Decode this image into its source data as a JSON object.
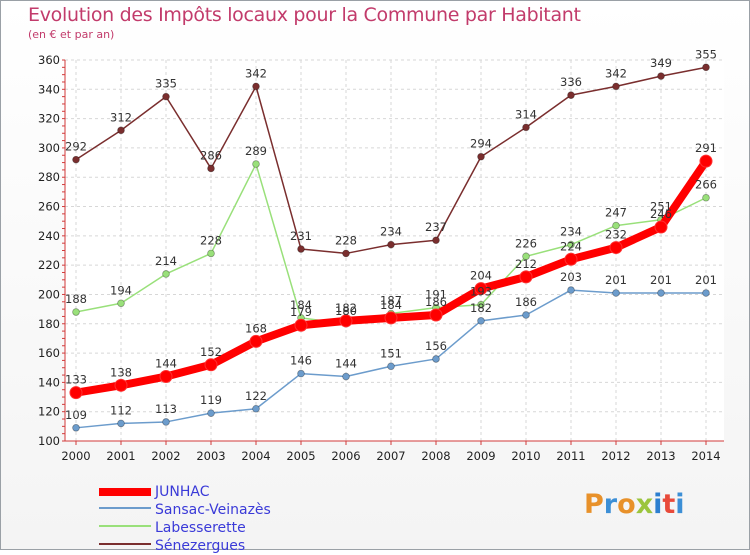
{
  "chart_data": {
    "type": "line",
    "title": "Evolution des Impôts locaux pour la Commune par Habitant",
    "subtitle": "(en € et par an)",
    "xlabel": "",
    "ylabel": "",
    "x": [
      "2000",
      "2001",
      "2002",
      "2003",
      "2004",
      "2005",
      "2006",
      "2007",
      "2008",
      "2009",
      "2010",
      "2011",
      "2012",
      "2013",
      "2014"
    ],
    "ylim": [
      100,
      360
    ],
    "yticks": [
      100,
      120,
      140,
      160,
      180,
      200,
      220,
      240,
      260,
      280,
      300,
      320,
      340,
      360
    ],
    "legend_position": "bottom-left",
    "series": [
      {
        "name": "JUNHAC",
        "color": "#ff0000",
        "values": [
          133,
          138,
          144,
          152,
          168,
          179,
          182,
          184,
          186,
          204,
          212,
          224,
          232,
          246,
          291
        ],
        "labels": [
          "133",
          "138",
          "144",
          "152",
          "168",
          "179",
          "182",
          "184",
          "186",
          "204",
          "212",
          "224",
          "232",
          "246",
          "291"
        ]
      },
      {
        "name": "Sansac-Veinazès",
        "color": "#6c9ccc",
        "values": [
          109,
          112,
          113,
          119,
          122,
          146,
          144,
          151,
          156,
          182,
          186,
          203,
          201,
          201,
          201
        ],
        "labels": [
          "109",
          "112",
          "113",
          "119",
          "122",
          "146",
          "144",
          "151",
          "156",
          "182",
          "186",
          "203",
          "201",
          "201",
          "201"
        ]
      },
      {
        "name": "Labesserette",
        "color": "#99e07a",
        "values": [
          188,
          194,
          214,
          228,
          289,
          184,
          180,
          187,
          191,
          193,
          226,
          234,
          247,
          251,
          266
        ],
        "labels": [
          "188",
          "194",
          "214",
          "228",
          "289",
          "184",
          "180",
          "187",
          "191",
          "193",
          "226",
          "234",
          "247",
          "251",
          "266"
        ]
      },
      {
        "name": "Sénezergues",
        "color": "#7a2e2e",
        "values": [
          292,
          312,
          335,
          286,
          342,
          231,
          228,
          234,
          237,
          294,
          314,
          336,
          342,
          349,
          355
        ],
        "labels": [
          "292",
          "312",
          "335",
          "286",
          "342",
          "231",
          "228",
          "234",
          "237",
          "294",
          "314",
          "336",
          "342",
          "349",
          "355"
        ]
      }
    ]
  },
  "branding": {
    "logo_text": "Proxiti",
    "logo_colors": [
      "#e8912a",
      "#3c8fd6",
      "#e8912a",
      "#9bc53d",
      "#2d7fd0",
      "#e84a3a",
      "#3c8fd6"
    ]
  }
}
